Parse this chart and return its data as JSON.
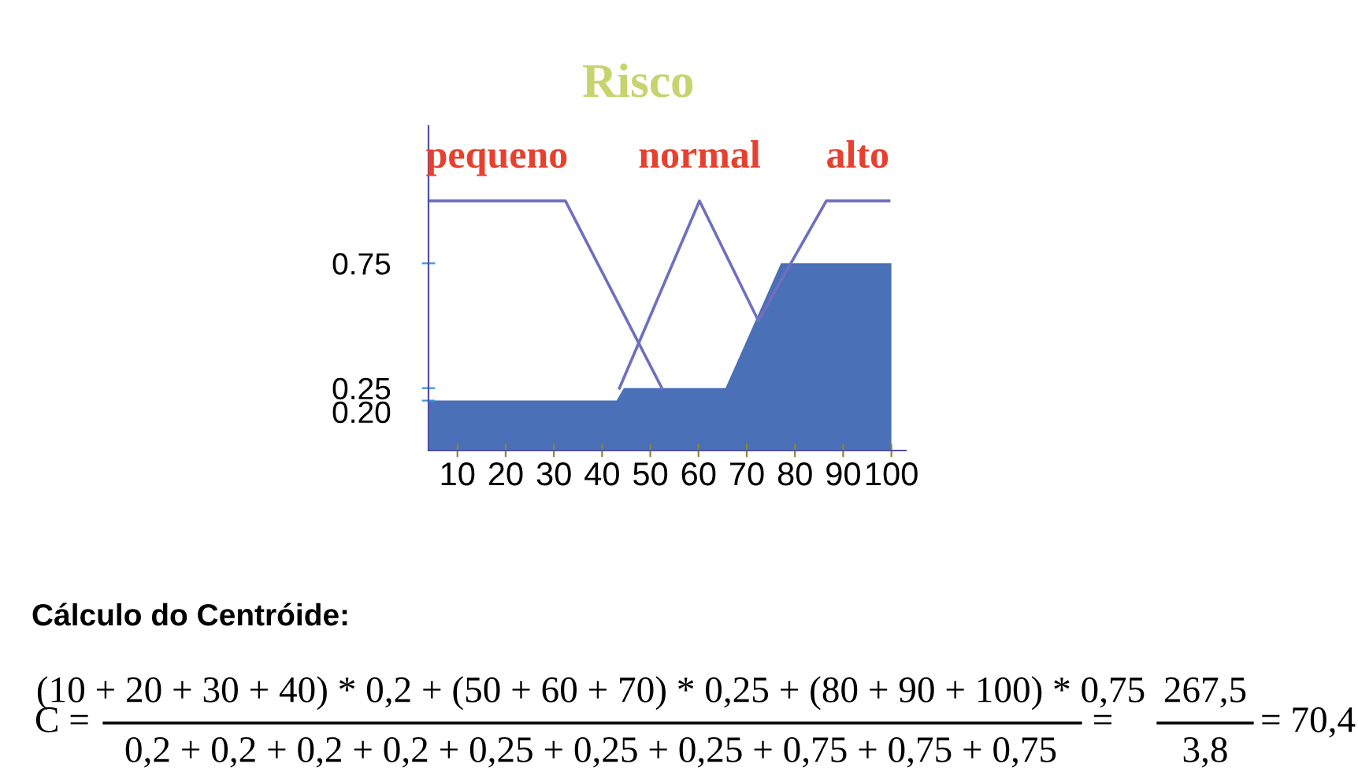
{
  "chart_data": {
    "type": "line",
    "title": "Risco",
    "series": [
      {
        "name": "pequeno",
        "color": "#6f6fbf",
        "x": [
          4,
          32.4,
          52.4
        ],
        "values": [
          1,
          1,
          0.25
        ]
      },
      {
        "name": "normal",
        "color": "#6f6fbf",
        "x": [
          43.6,
          60.2,
          72.4
        ],
        "values": [
          0.25,
          1,
          0.52
        ]
      },
      {
        "name": "alto",
        "color": "#6f6fbf",
        "x": [
          72.4,
          86.5,
          99.5
        ],
        "values": [
          0.52,
          1,
          1
        ]
      },
      {
        "type": "area",
        "color": "#4a70b8",
        "x": [
          4,
          43,
          44.5,
          65.6,
          77.1,
          100
        ],
        "values": [
          0.2,
          0.2,
          0.25,
          0.25,
          0.75,
          0.75
        ]
      }
    ],
    "xlim": [
      4,
      103
    ],
    "ylim": [
      0,
      1.3
    ],
    "xticks": [
      10,
      20,
      30,
      40,
      50,
      60,
      70,
      80,
      90,
      100
    ],
    "yticks": [
      {
        "value": 0.2,
        "label": "0.20"
      },
      {
        "value": 0.25,
        "label": "0.25"
      },
      {
        "value": 0.75,
        "label": "0.75"
      }
    ],
    "grid": false,
    "legend": false,
    "annotations": [
      "Cálculo do Centróide:",
      "C =",
      "(10 + 20 + 30 + 40) * 0,2 + (50 + 60 + 70) * 0,25 + (80 + 90 + 100) * 0,75",
      "0,2 + 0,2 + 0,2 + 0,2 + 0,25 + 0,25 + 0,25 + 0,75 + 0,75 + 0,75",
      "=",
      "267,5",
      "3,8",
      "= 70,4"
    ]
  }
}
